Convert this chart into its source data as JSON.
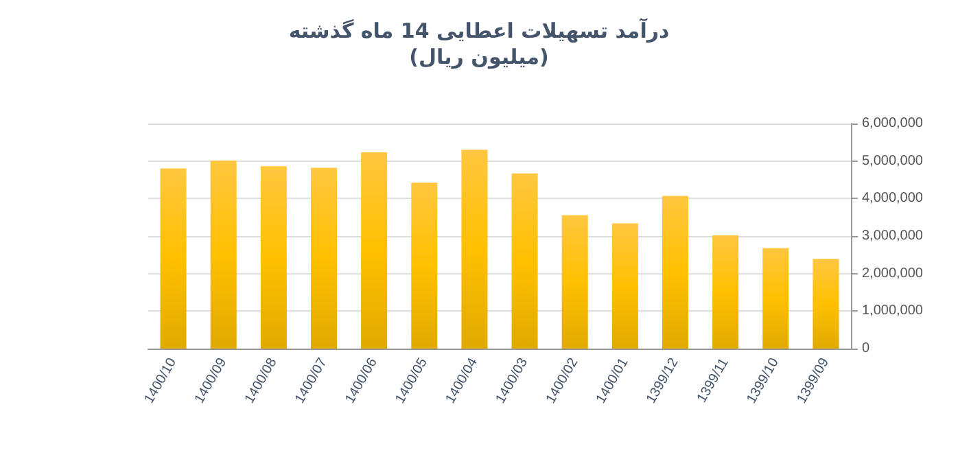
{
  "chart_data": {
    "type": "bar",
    "title": "درآمد تسهیلات اعطایی 14 ماه گذشته",
    "subtitle": "(میلیون ریال)",
    "categories": [
      "1400/10",
      "1400/09",
      "1400/08",
      "1400/07",
      "1400/06",
      "1400/05",
      "1400/04",
      "1400/03",
      "1400/02",
      "1400/01",
      "1399/12",
      "1399/11",
      "1399/10",
      "1399/09"
    ],
    "values": [
      4800000,
      5010000,
      4860000,
      4820000,
      5230000,
      4420000,
      5300000,
      4670000,
      3560000,
      3340000,
      4070000,
      3020000,
      2680000,
      2390000
    ],
    "color": "#ffc000",
    "ylim": [
      0,
      6000000
    ],
    "yticks": [
      0,
      {
        "value": 1000000,
        "label": "1,000,000"
      },
      {
        "value": 2000000,
        "label": "2,000,000"
      },
      {
        "value": 3000000,
        "label": "3,000,000"
      },
      {
        "value": 4000000,
        "label": "4,000,000"
      },
      {
        "value": 5000000,
        "label": "5,000,000"
      },
      {
        "value": 6000000,
        "label": "6,000,000"
      }
    ],
    "grid": "y"
  }
}
